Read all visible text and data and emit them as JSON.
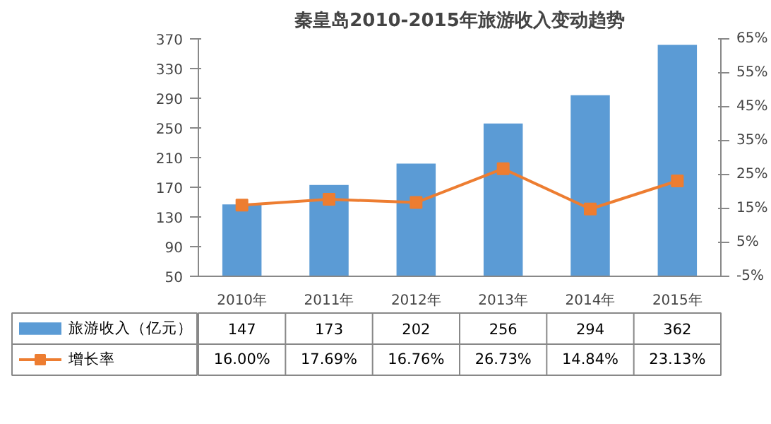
{
  "chart_data": {
    "type": "bar",
    "title": "秦皇岛2010-2015年旅游收入变动趋势",
    "categories": [
      "2010年",
      "2011年",
      "2012年",
      "2013年",
      "2014年",
      "2015年"
    ],
    "ylim": [
      50,
      370
    ],
    "yticks": [
      50,
      90,
      130,
      170,
      210,
      250,
      290,
      330,
      370
    ],
    "y2lim": [
      -5,
      65
    ],
    "y2ticks": [
      {
        "value": -5,
        "label": "-5%"
      },
      {
        "value": 5,
        "label": "5%"
      },
      {
        "value": 15,
        "label": "15%"
      },
      {
        "value": 25,
        "label": "25%"
      },
      {
        "value": 35,
        "label": "35%"
      },
      {
        "value": 45,
        "label": "45%"
      },
      {
        "value": 55,
        "label": "55%"
      },
      {
        "value": 65,
        "label": "65%"
      }
    ],
    "marker": "square",
    "legend": "bottom",
    "grid": false,
    "series": [
      {
        "name": "旅游收入（亿元）",
        "color": "#5b9bd5",
        "values": [
          147,
          173,
          202,
          256,
          294,
          362
        ],
        "value_labels": [
          "147",
          "173",
          "202",
          "256",
          "294",
          "362"
        ]
      },
      {
        "name": "增长率",
        "type": "line",
        "axis": "y2",
        "color": "#ed7d31",
        "values": [
          16.0,
          17.69,
          16.76,
          26.73,
          14.84,
          23.13
        ],
        "value_labels": [
          "16.00%",
          "17.69%",
          "16.76%",
          "26.73%",
          "14.84%",
          "23.13%"
        ]
      }
    ]
  }
}
